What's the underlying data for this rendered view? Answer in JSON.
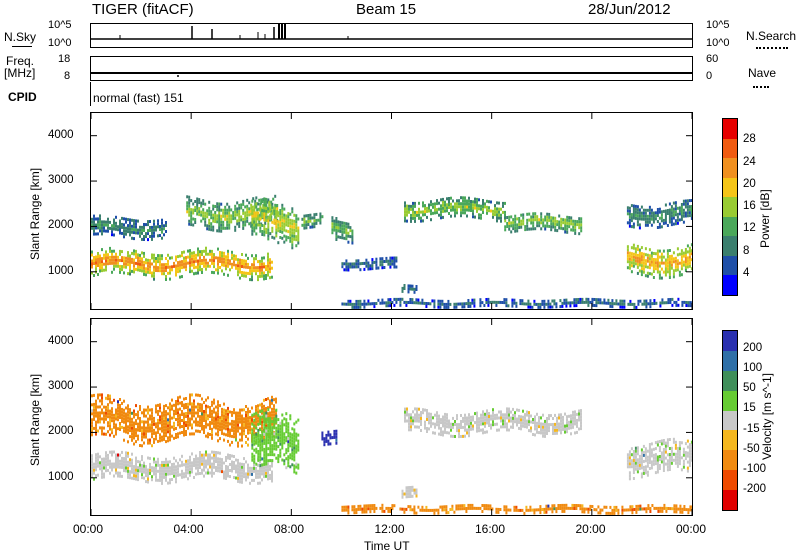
{
  "header": {
    "radar": "TIGER (fitACF)",
    "beam": "Beam 15",
    "date": "28/Jun/2012"
  },
  "top_panels": {
    "nsky": {
      "label": "N.Sky",
      "ticks": [
        "10^5",
        "10^0"
      ],
      "right_label": "N.Search",
      "right_ticks": [
        "10^5",
        "10^0"
      ]
    },
    "freq": {
      "label_line1": "Freq.",
      "label_line2": "[MHz]",
      "ticks": [
        "18",
        "8"
      ],
      "right_label": "Nave",
      "right_ticks": [
        "60",
        "0"
      ]
    },
    "cpid": {
      "label": "CPID",
      "text": "normal (fast) 151"
    }
  },
  "colors": {
    "power": [
      "#0000ff",
      "#1e4fa8",
      "#3a7f6e",
      "#4aa85a",
      "#99cc33",
      "#f5c518",
      "#f09020",
      "#f05a10",
      "#e60000"
    ],
    "velocity": [
      "#2a30b0",
      "#2f70a8",
      "#3f8f5a",
      "#66cc33",
      "#c8c8c8",
      "#f5b820",
      "#f08a10",
      "#ee4a00",
      "#e00000"
    ]
  },
  "chart_data": [
    {
      "type": "heatmap",
      "title": "",
      "xlabel": "Time UT",
      "ylabel": "Slant Range [km]",
      "x_ticks": [
        "00:00",
        "04:00",
        "08:00",
        "12:00",
        "16:00",
        "20:00",
        "00:00"
      ],
      "x_range_hours": [
        0,
        24
      ],
      "y_ticks": [
        "1000",
        "2000",
        "3000",
        "4000"
      ],
      "ylim": [
        180,
        4500
      ],
      "colorbar": {
        "label": "Power [dB]",
        "ticks": [
          "4",
          "8",
          "12",
          "16",
          "20",
          "24",
          "28"
        ],
        "range": [
          0,
          32
        ]
      },
      "scatter_regions": [
        {
          "t_start": 0.0,
          "t_end": 7.2,
          "range_center": 1150,
          "range_width": 550,
          "power": 22
        },
        {
          "t_start": 0.0,
          "t_end": 3.0,
          "range_center": 1950,
          "range_width": 420,
          "power": 8
        },
        {
          "t_start": 3.8,
          "t_end": 7.4,
          "range_center": 2250,
          "range_width": 600,
          "power": 14
        },
        {
          "t_start": 6.4,
          "t_end": 8.3,
          "range_center": 2050,
          "range_width": 900,
          "power": 16
        },
        {
          "t_start": 8.4,
          "t_end": 9.2,
          "range_center": 2100,
          "range_width": 300,
          "power": 12
        },
        {
          "t_start": 9.6,
          "t_end": 10.4,
          "range_center": 1900,
          "range_width": 500,
          "power": 12
        },
        {
          "t_start": 10.0,
          "t_end": 12.2,
          "range_center": 1150,
          "range_width": 220,
          "power": 6
        },
        {
          "t_start": 12.4,
          "t_end": 13.0,
          "range_center": 620,
          "range_width": 180,
          "power": 6
        },
        {
          "t_start": 12.5,
          "t_end": 16.5,
          "range_center": 2350,
          "range_width": 420,
          "power": 14
        },
        {
          "t_start": 16.5,
          "t_end": 19.6,
          "range_center": 2050,
          "range_width": 380,
          "power": 14
        },
        {
          "t_start": 21.4,
          "t_end": 24.0,
          "range_center": 1250,
          "range_width": 650,
          "power": 20
        },
        {
          "t_start": 21.4,
          "t_end": 24.0,
          "range_center": 2250,
          "range_width": 500,
          "power": 8
        },
        {
          "t_start": 10.0,
          "t_end": 24.0,
          "range_center": 280,
          "range_width": 150,
          "power": 6
        }
      ]
    },
    {
      "type": "heatmap",
      "title": "",
      "xlabel": "Time UT",
      "ylabel": "Slant Range [km]",
      "x_ticks": [
        "00:00",
        "04:00",
        "08:00",
        "12:00",
        "16:00",
        "20:00",
        "00:00"
      ],
      "x_range_hours": [
        0,
        24
      ],
      "y_ticks": [
        "1000",
        "2000",
        "3000",
        "4000"
      ],
      "ylim": [
        180,
        4500
      ],
      "colorbar": {
        "label": "Velocity [m s^-1]",
        "ticks": [
          "200",
          "100",
          "50",
          "15",
          "-15",
          "-50",
          "-100",
          "-200"
        ]
      },
      "scatter_regions": [
        {
          "t_start": 0.0,
          "t_end": 7.2,
          "range_center": 1200,
          "range_width": 550,
          "velocity": 0
        },
        {
          "t_start": 0.0,
          "t_end": 7.4,
          "range_center": 2250,
          "range_width": 900,
          "velocity": -60
        },
        {
          "t_start": 6.4,
          "t_end": 8.3,
          "range_center": 1700,
          "range_width": 1200,
          "velocity": 20
        },
        {
          "t_start": 9.2,
          "t_end": 9.8,
          "range_center": 1850,
          "range_width": 300,
          "velocity": 200
        },
        {
          "t_start": 12.4,
          "t_end": 13.0,
          "range_center": 650,
          "range_width": 220,
          "velocity": 0
        },
        {
          "t_start": 12.5,
          "t_end": 19.6,
          "range_center": 2200,
          "range_width": 500,
          "velocity": 0
        },
        {
          "t_start": 21.4,
          "t_end": 24.0,
          "range_center": 1400,
          "range_width": 700,
          "velocity": 10
        },
        {
          "t_start": 10.0,
          "t_end": 24.0,
          "range_center": 280,
          "range_width": 150,
          "velocity": -60
        }
      ]
    }
  ]
}
